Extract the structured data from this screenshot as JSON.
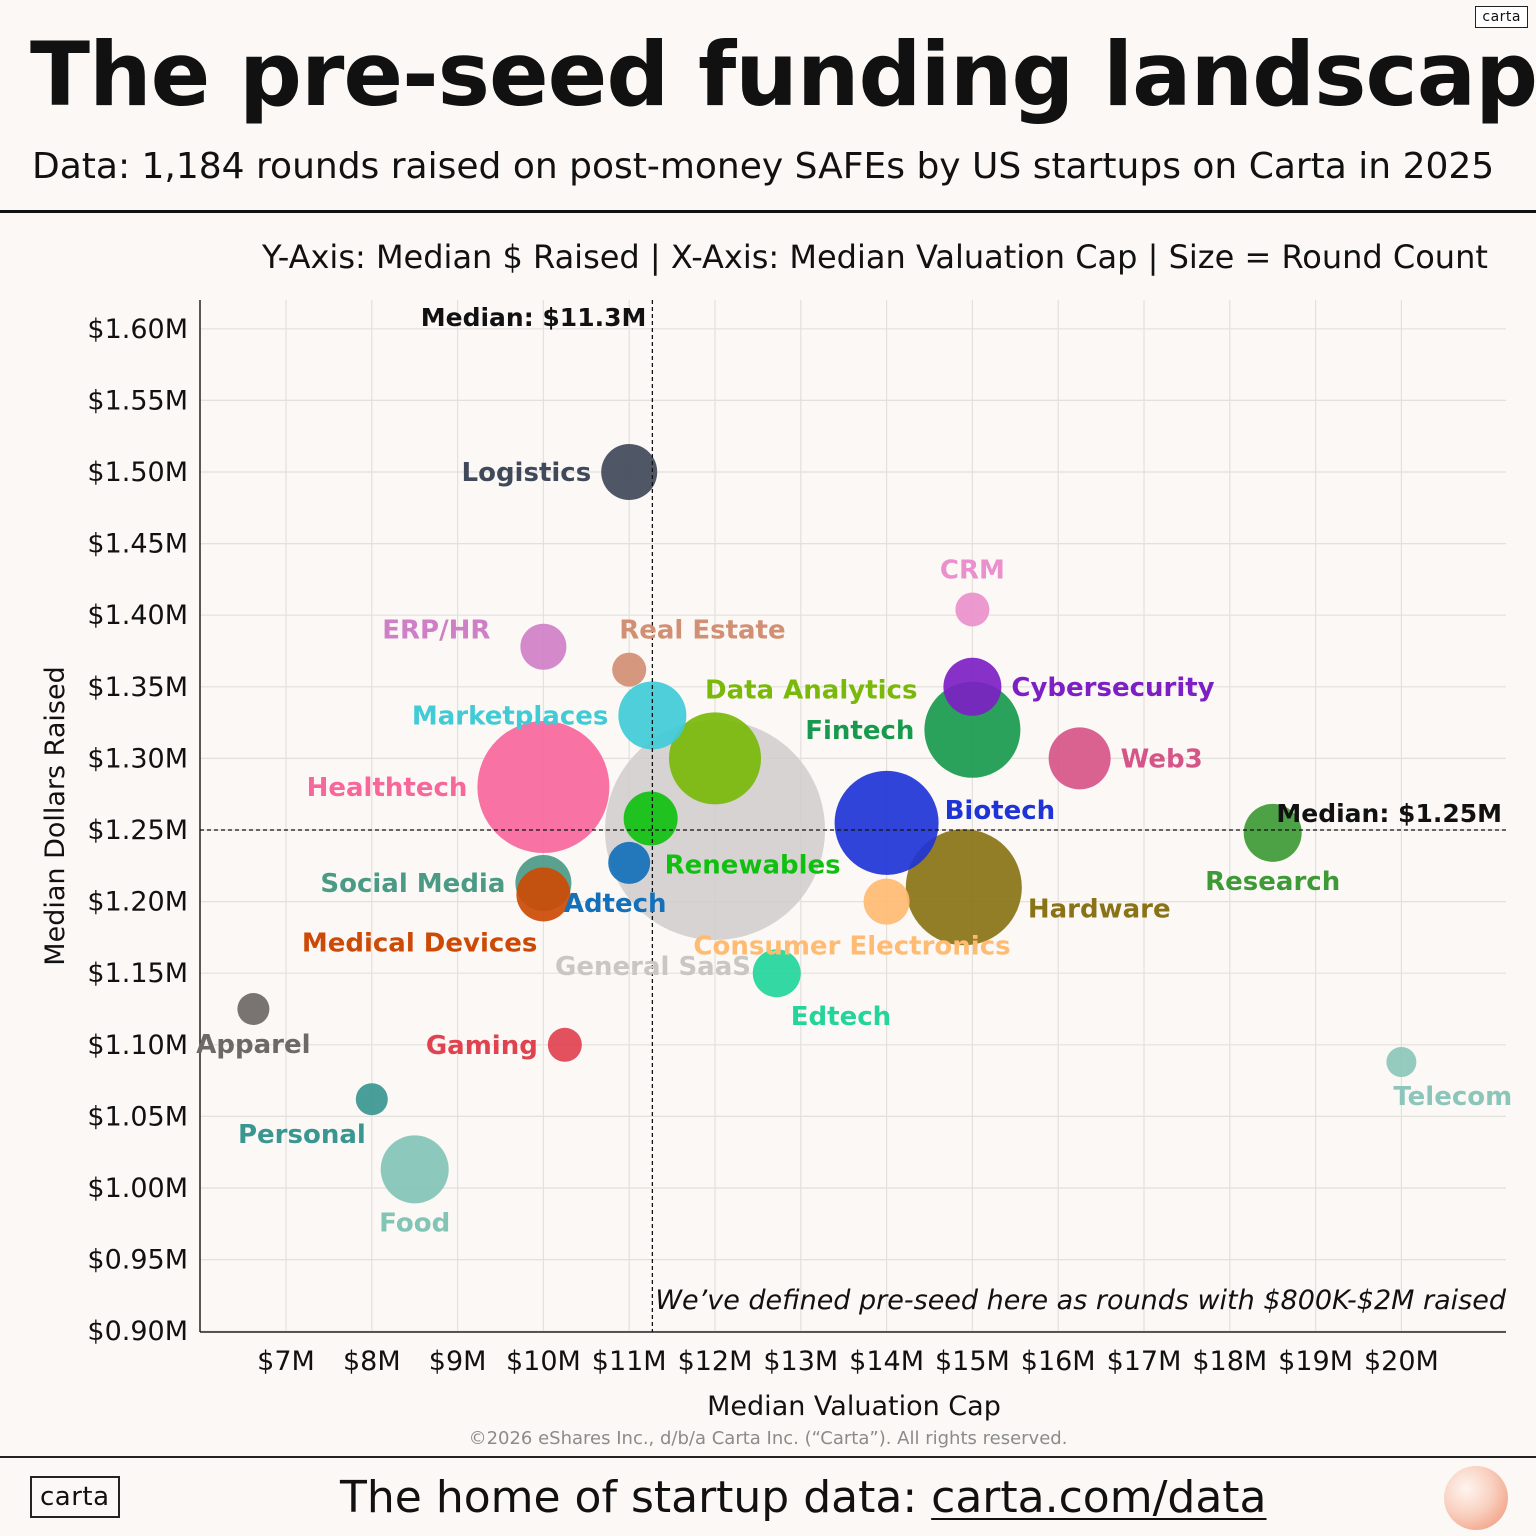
{
  "header": {
    "title": "The pre-seed funding landscape",
    "subtitle": "Data: 1,184 rounds raised on post-money SAFEs by US startups on Carta in 2025",
    "brand": "carta"
  },
  "chart_data": {
    "type": "scatter",
    "subtitle": "Y-Axis: Median $ Raised | X-Axis: Median Valuation Cap | Size = Round Count",
    "xlabel": "Median Valuation Cap",
    "ylabel": "Median Dollars Raised",
    "x_unit": "$M valuation cap",
    "y_unit": "$M raised",
    "xlim": [
      6,
      21.2
    ],
    "ylim": [
      0.88,
      1.62
    ],
    "x_ticks": [
      {
        "value": 7,
        "label": "$7M"
      },
      {
        "value": 8,
        "label": "$8M"
      },
      {
        "value": 9,
        "label": "$9M"
      },
      {
        "value": 10,
        "label": "$10M"
      },
      {
        "value": 11,
        "label": "$11M"
      },
      {
        "value": 12,
        "label": "$12M"
      },
      {
        "value": 13,
        "label": "$13M"
      },
      {
        "value": 14,
        "label": "$14M"
      },
      {
        "value": 15,
        "label": "$15M"
      },
      {
        "value": 16,
        "label": "$16M"
      },
      {
        "value": 17,
        "label": "$17M"
      },
      {
        "value": 18,
        "label": "$18M"
      },
      {
        "value": 19,
        "label": "$19M"
      },
      {
        "value": 20,
        "label": "$20M"
      }
    ],
    "y_ticks": [
      {
        "value": 0.9,
        "label": "$0.90M"
      },
      {
        "value": 0.95,
        "label": "$0.95M"
      },
      {
        "value": 1.0,
        "label": "$1.00M"
      },
      {
        "value": 1.05,
        "label": "$1.05M"
      },
      {
        "value": 1.1,
        "label": "$1.10M"
      },
      {
        "value": 1.15,
        "label": "$1.15M"
      },
      {
        "value": 1.2,
        "label": "$1.20M"
      },
      {
        "value": 1.25,
        "label": "$1.25M"
      },
      {
        "value": 1.3,
        "label": "$1.30M"
      },
      {
        "value": 1.35,
        "label": "$1.35M"
      },
      {
        "value": 1.4,
        "label": "$1.40M"
      },
      {
        "value": 1.45,
        "label": "$1.45M"
      },
      {
        "value": 1.5,
        "label": "$1.50M"
      },
      {
        "value": 1.55,
        "label": "$1.55M"
      },
      {
        "value": 1.6,
        "label": "$1.60M"
      }
    ],
    "median_x": {
      "value": 11.27,
      "label": "Median: $11.3M"
    },
    "median_y": {
      "value": 1.25,
      "label": "Median: $1.25M"
    },
    "size_note": "Bubble radius approximates relative round count",
    "series": [
      {
        "name": "General SaaS",
        "x": 12.0,
        "y": 1.25,
        "relative_size": 110,
        "color": "#cfcdcb",
        "label_pos": "general"
      },
      {
        "name": "Healthtech",
        "x": 10.0,
        "y": 1.28,
        "relative_size": 66,
        "color": "#f7679c",
        "label_pos": "left"
      },
      {
        "name": "Hardware",
        "x": 14.9,
        "y": 1.21,
        "relative_size": 58,
        "color": "#8a7316",
        "label_pos": "right-below"
      },
      {
        "name": "Biotech",
        "x": 14.0,
        "y": 1.255,
        "relative_size": 52,
        "color": "#1f34d6",
        "label_pos": "right-above"
      },
      {
        "name": "Fintech",
        "x": 15.0,
        "y": 1.32,
        "relative_size": 48,
        "color": "#189a4e",
        "label_pos": "left"
      },
      {
        "name": "Data Analytics",
        "x": 12.0,
        "y": 1.3,
        "relative_size": 46,
        "color": "#7ab80a",
        "label_pos": "above-right"
      },
      {
        "name": "Marketplaces",
        "x": 11.27,
        "y": 1.33,
        "relative_size": 34,
        "color": "#40cbd6",
        "label_pos": "left"
      },
      {
        "name": "Web3",
        "x": 16.25,
        "y": 1.3,
        "relative_size": 31,
        "color": "#d65588",
        "label_pos": "right"
      },
      {
        "name": "Cybersecurity",
        "x": 15.0,
        "y": 1.35,
        "relative_size": 29,
        "color": "#7d1fc4",
        "label_pos": "right"
      },
      {
        "name": "Logistics",
        "x": 11.0,
        "y": 1.5,
        "relative_size": 28,
        "color": "#40495a",
        "label_pos": "left"
      },
      {
        "name": "Research",
        "x": 18.5,
        "y": 1.248,
        "relative_size": 29,
        "color": "#3e9a36",
        "label_pos": "below"
      },
      {
        "name": "Food",
        "x": 8.5,
        "y": 1.013,
        "relative_size": 34,
        "color": "#82c4b6",
        "label_pos": "below"
      },
      {
        "name": "Social Media",
        "x": 10.0,
        "y": 1.213,
        "relative_size": 28,
        "color": "#4a9a86",
        "label_pos": "left"
      },
      {
        "name": "Medical Devices",
        "x": 10.0,
        "y": 1.205,
        "relative_size": 27,
        "color": "#cc4a05",
        "label_pos": "below-left"
      },
      {
        "name": "Renewables",
        "x": 11.25,
        "y": 1.258,
        "relative_size": 27,
        "color": "#0fc00f",
        "label_pos": "below-right"
      },
      {
        "name": "Edtech",
        "x": 12.72,
        "y": 1.15,
        "relative_size": 24,
        "color": "#23d59a",
        "label_pos": "below-right"
      },
      {
        "name": "ERP/HR",
        "x": 10.0,
        "y": 1.378,
        "relative_size": 23,
        "color": "#cf7fc6",
        "label_pos": "left-above"
      },
      {
        "name": "Consumer Electronics",
        "x": 14.0,
        "y": 1.2,
        "relative_size": 23,
        "color": "#ffbb72",
        "label_pos": "below-left"
      },
      {
        "name": "Adtech",
        "x": 11.0,
        "y": 1.227,
        "relative_size": 21,
        "color": "#1470b8",
        "label_pos": "below"
      },
      {
        "name": "Real Estate",
        "x": 11.0,
        "y": 1.362,
        "relative_size": 17,
        "color": "#d18f73",
        "label_pos": "above-right"
      },
      {
        "name": "CRM",
        "x": 15.0,
        "y": 1.404,
        "relative_size": 17,
        "color": "#ea90cc",
        "label_pos": "above"
      },
      {
        "name": "Gaming",
        "x": 10.25,
        "y": 1.1,
        "relative_size": 17,
        "color": "#e0424f",
        "label_pos": "left"
      },
      {
        "name": "Personal",
        "x": 8.0,
        "y": 1.062,
        "relative_size": 16,
        "color": "#3a9690",
        "label_pos": "below-left"
      },
      {
        "name": "Apparel",
        "x": 6.62,
        "y": 1.125,
        "relative_size": 16,
        "color": "#6e6866",
        "label_pos": "below"
      },
      {
        "name": "Telecom",
        "x": 20.0,
        "y": 1.088,
        "relative_size": 15,
        "color": "#8cc6ba",
        "label_pos": "below-right"
      }
    ],
    "annotation": "We’ve defined pre-seed here as rounds with $800K-$2M raised"
  },
  "footer": {
    "copyright": "©2026 eShares Inc., d/b/a Carta Inc. (“Carta”). All rights reserved.",
    "brand": "carta",
    "tagline_prefix": "The home of startup data: ",
    "tagline_link": "carta.com/data"
  }
}
